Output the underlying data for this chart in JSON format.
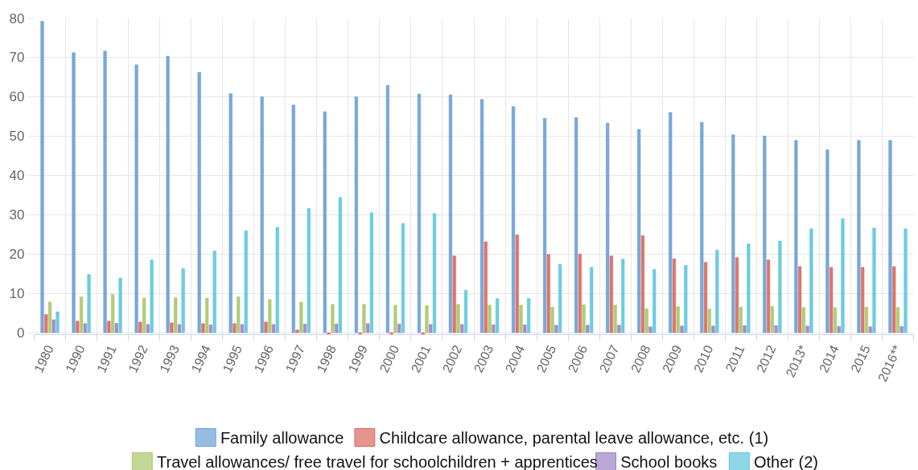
{
  "chart_data": {
    "type": "bar",
    "categories": [
      "1980",
      "1990",
      "1991",
      "1992",
      "1993",
      "1994",
      "1995",
      "1996",
      "1997",
      "1998",
      "1999",
      "2000",
      "2001",
      "2002",
      "2003",
      "2004",
      "2005",
      "2006",
      "2007",
      "2008",
      "2009",
      "2010",
      "2011",
      "2012",
      "2013*",
      "2014",
      "2015",
      "2016**"
    ],
    "series": [
      {
        "name": "Family allowance",
        "color": "#6a9fd6",
        "values": [
          79.2,
          71.2,
          71.6,
          68.1,
          70.3,
          66.2,
          60.8,
          60.0,
          57.9,
          56.2,
          60.0,
          62.9,
          60.7,
          60.5,
          59.3,
          57.5,
          54.5,
          54.7,
          53.3,
          51.7,
          56.0,
          53.5,
          50.3,
          50.0,
          48.9,
          46.5,
          48.9,
          48.9
        ]
      },
      {
        "name": "Childcare allowance, parental leave allowance, etc. (1)",
        "color": "#da675e",
        "values": [
          4.6,
          2.9,
          2.9,
          2.7,
          2.5,
          2.3,
          2.3,
          2.7,
          0.7,
          -0.4,
          -0.4,
          -0.4,
          -0.4,
          19.5,
          23.1,
          24.9,
          19.9,
          20.0,
          19.5,
          24.7,
          18.8,
          17.9,
          19.1,
          18.5,
          16.8,
          16.6,
          16.6,
          16.8
        ]
      },
      {
        "name": "Travel allowances/ free travel for schoolchildren + apprentices",
        "color": "#a9c76a",
        "values": [
          7.8,
          9.1,
          9.7,
          8.8,
          8.9,
          8.8,
          9.1,
          8.4,
          7.8,
          7.2,
          7.2,
          7.0,
          6.9,
          7.2,
          7.0,
          7.0,
          6.5,
          7.1,
          7.0,
          6.1,
          6.6,
          6.0,
          6.5,
          6.7,
          6.4,
          6.4,
          6.5,
          6.4
        ]
      },
      {
        "name": "School books",
        "color": "#9b82c3",
        "values": [
          3.3,
          2.3,
          2.4,
          2.1,
          2.1,
          2.0,
          2.1,
          2.1,
          2.2,
          2.2,
          2.3,
          2.2,
          2.1,
          2.1,
          2.0,
          2.0,
          1.9,
          1.9,
          1.9,
          1.5,
          1.7,
          1.7,
          1.8,
          1.8,
          1.7,
          1.6,
          1.5,
          1.6
        ]
      },
      {
        "name": "Other (2)",
        "color": "#5ec6dd",
        "values": [
          5.3,
          14.8,
          13.9,
          18.5,
          16.3,
          20.8,
          25.9,
          26.8,
          31.6,
          34.4,
          30.5,
          27.8,
          30.3,
          10.8,
          8.7,
          8.7,
          17.4,
          16.6,
          18.7,
          16.1,
          17.1,
          21.0,
          22.6,
          23.3,
          26.4,
          29.0,
          26.6,
          26.4
        ]
      }
    ],
    "ylim": [
      -0.5,
      80
    ],
    "yticks": [
      0,
      10,
      20,
      30,
      40,
      50,
      60,
      70,
      80
    ],
    "grid": true,
    "legend": "bottom"
  }
}
